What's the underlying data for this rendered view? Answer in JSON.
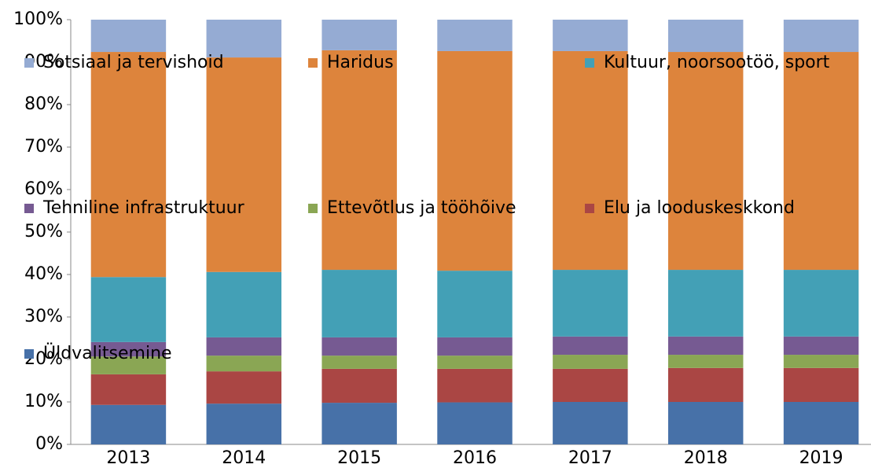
{
  "chart_data": {
    "type": "stacked_bar_100",
    "categories": [
      "2013",
      "2014",
      "2015",
      "2016",
      "2017",
      "2018",
      "2019"
    ],
    "series": [
      {
        "name": "Üldvalitsemine",
        "color": "#4771a8",
        "values": [
          9.3,
          9.6,
          9.8,
          9.9,
          10.0,
          10.0,
          10.0
        ]
      },
      {
        "name": "Elu ja looduskeskkond",
        "color": "#aa4644",
        "values": [
          7.2,
          7.6,
          8.0,
          7.9,
          7.8,
          8.0,
          8.0
        ]
      },
      {
        "name": "Ettevõtlus ja tööhõive",
        "color": "#8aa654",
        "values": [
          4.2,
          3.7,
          3.1,
          3.1,
          3.3,
          3.1,
          3.1
        ]
      },
      {
        "name": "Tehniline infrastruktuur",
        "color": "#765a92",
        "values": [
          3.4,
          4.3,
          4.3,
          4.3,
          4.3,
          4.3,
          4.3
        ]
      },
      {
        "name": "Kultuur, noorsootöö, sport",
        "color": "#43a0b6",
        "values": [
          15.3,
          15.4,
          15.9,
          15.7,
          15.7,
          15.7,
          15.7
        ]
      },
      {
        "name": "Haridus",
        "color": "#dd843c",
        "values": [
          53.0,
          50.5,
          51.7,
          51.7,
          51.5,
          51.3,
          51.3
        ]
      },
      {
        "name": "Sotsiaal ja tervishoid",
        "color": "#95abd3",
        "values": [
          7.6,
          8.9,
          7.2,
          7.4,
          7.4,
          7.6,
          7.6
        ]
      }
    ],
    "ylim": [
      0,
      100
    ],
    "yticks": [
      {
        "value": 0,
        "label": "0%"
      },
      {
        "value": 10,
        "label": "10%"
      },
      {
        "value": 20,
        "label": "20%"
      },
      {
        "value": 30,
        "label": "30%"
      },
      {
        "value": 40,
        "label": "40%"
      },
      {
        "value": 50,
        "label": "50%"
      },
      {
        "value": 60,
        "label": "60%"
      },
      {
        "value": 70,
        "label": "70%"
      },
      {
        "value": 80,
        "label": "80%"
      },
      {
        "value": 90,
        "label": "90%"
      },
      {
        "value": 100,
        "label": "100%"
      }
    ],
    "grid": false
  }
}
